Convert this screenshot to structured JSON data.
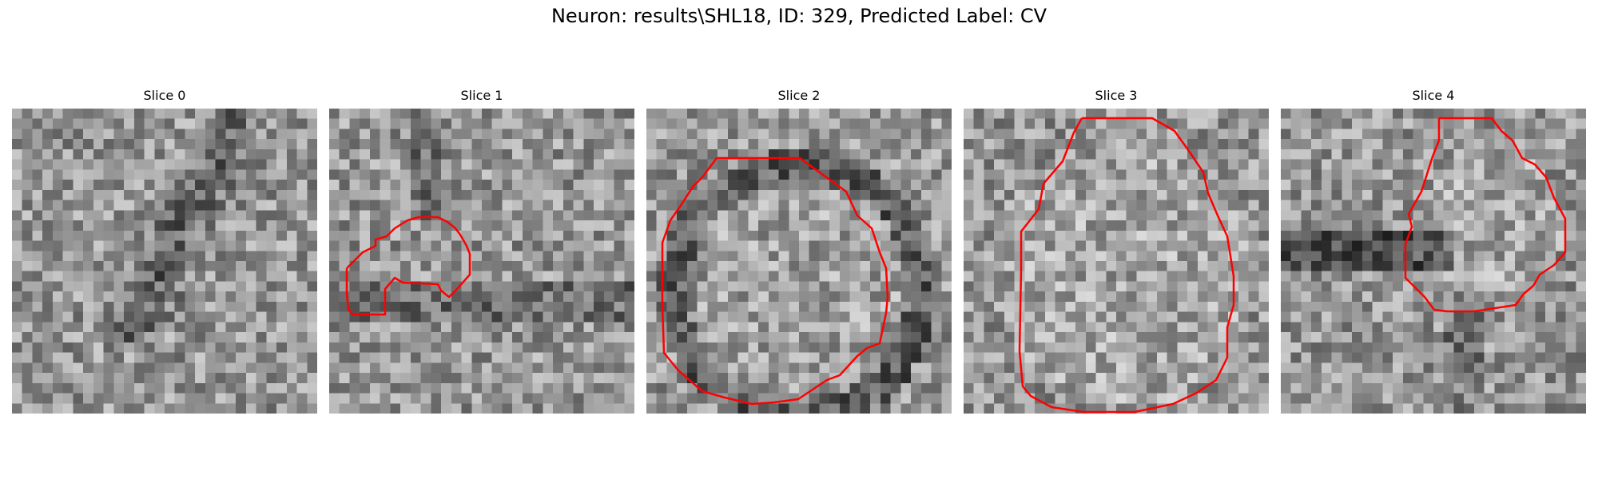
{
  "figure": {
    "title": "Neuron: results\\SHL18, ID: 329, Predicted Label: CV"
  },
  "panels": [
    {
      "title": "Slice 0",
      "has_contour": false,
      "pattern": "diagonal-dark-band"
    },
    {
      "title": "Slice 1",
      "has_contour": true,
      "pattern": "small-blob"
    },
    {
      "title": "Slice 2",
      "has_contour": true,
      "pattern": "ring-dark-rim"
    },
    {
      "title": "Slice 3",
      "has_contour": true,
      "pattern": "large-disc"
    },
    {
      "title": "Slice 4",
      "has_contour": true,
      "pattern": "upper-right-disc"
    }
  ],
  "style": {
    "contour_color": "#ff0000",
    "colormap": "gray"
  }
}
